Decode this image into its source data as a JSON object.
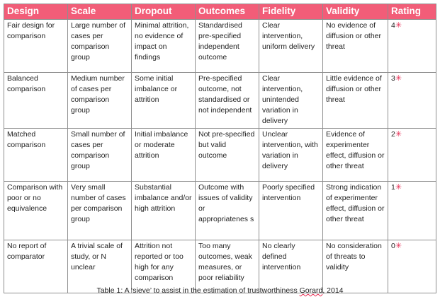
{
  "headers": [
    "Design",
    "Scale",
    "Dropout",
    "Outcomes",
    "Fidelity",
    "Validity",
    "Rating"
  ],
  "rows": [
    {
      "design": "Fair design for comparison",
      "scale": "Large number of cases per comparison group",
      "dropout": "Minimal attrition, no evidence of impact on findings",
      "outcomes": "Standardised pre-specified independent outcome",
      "fidelity": "Clear intervention, uniform delivery",
      "validity": "No evidence of diffusion or other threat",
      "rating": "4"
    },
    {
      "design": "Balanced comparison",
      "scale": "Medium number of cases per comparison group",
      "dropout": "Some initial imbalance or attrition",
      "outcomes": "Pre-specified outcome, not standardised or not independent",
      "fidelity": "Clear intervention, unintended variation in delivery",
      "validity": "Little evidence of diffusion or other threat",
      "rating": "3"
    },
    {
      "design": "Matched comparison",
      "scale": "Small number of cases per comparison group",
      "dropout": "Initial imbalance or moderate attrition",
      "outcomes": "Not pre-specified but valid outcome",
      "fidelity": "Unclear intervention, with variation in delivery",
      "validity": "Evidence of experimenter effect, diffusion or other threat",
      "rating": "2"
    },
    {
      "design": "Comparison with poor or no equivalence",
      "scale": "Very small number of cases per comparison group",
      "dropout": "Substantial imbalance and/or high attrition",
      "outcomes": "Outcome with issues of validity or appropriatenes s",
      "fidelity": "Poorly specified intervention",
      "validity": "Strong indication of experimenter effect, diffusion or other threat",
      "rating": "1"
    },
    {
      "design": "No report of comparator",
      "scale": "A trivial scale of study, or N unclear",
      "dropout": "Attrition not reported or too high for any comparison",
      "outcomes": "Too many outcomes, weak measures, or poor reliability",
      "fidelity": "No clearly defined intervention",
      "validity": "No consideration of threats to validity",
      "rating": "0"
    }
  ],
  "star_symbol": "✳",
  "caption": {
    "main": "Table 1: A ‘sieve’ to assist in the estimation of trustworthiness",
    "author": "Gorard",
    "year": ", 2014"
  },
  "colors": {
    "header_bg": "#f25d78",
    "header_text": "#ffffff",
    "star": "#e8264f",
    "border": "#8f8f8f"
  }
}
